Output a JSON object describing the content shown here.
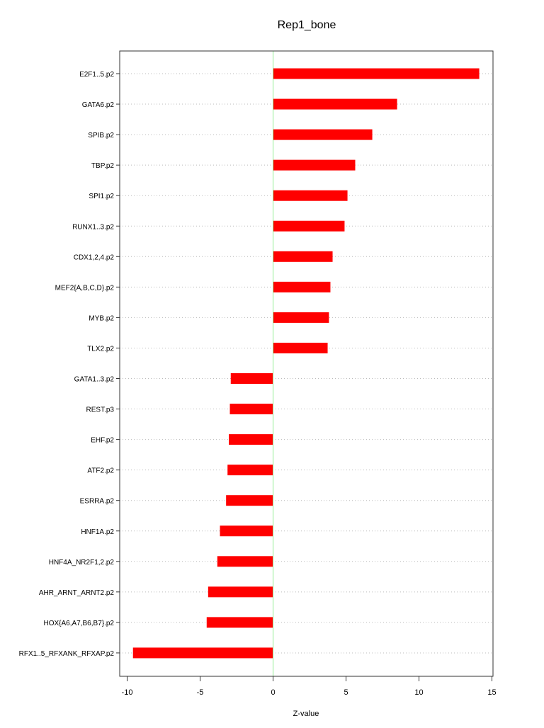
{
  "chart_data": {
    "type": "bar",
    "orientation": "horizontal",
    "title": "Rep1_bone",
    "xlabel": "Z-value",
    "ylabel": "",
    "xlim": [
      -10.5,
      15.2
    ],
    "xticks": [
      -10,
      -5,
      0,
      5,
      10,
      15
    ],
    "grid": "horizontal dotted",
    "zero_line_color": "#90ee90",
    "bar_color": "#ff0000",
    "categories": [
      "E2F1..5.p2",
      "GATA6.p2",
      "SPIB.p2",
      "TBP.p2",
      "SPI1.p2",
      "RUNX1..3.p2",
      "CDX1,2,4.p2",
      "MEF2{A,B,C,D}.p2",
      "MYB.p2",
      "TLX2.p2",
      "GATA1..3.p2",
      "REST.p3",
      "EHF.p2",
      "ATF2.p2",
      "ESRRA.p2",
      "HNF1A.p2",
      "HNF4A_NR2F1,2.p2",
      "AHR_ARNT_ARNT2.p2",
      "HOX{A6,A7,B6,B7}.p2",
      "RFX1..5_RFXANK_RFXAP.p2"
    ],
    "values": [
      14.13,
      8.5,
      6.8,
      5.63,
      5.1,
      4.9,
      4.08,
      3.93,
      3.83,
      3.74,
      -2.9,
      -2.96,
      -3.03,
      -3.12,
      -3.22,
      -3.64,
      -3.82,
      -4.45,
      -4.55,
      -9.6
    ]
  }
}
